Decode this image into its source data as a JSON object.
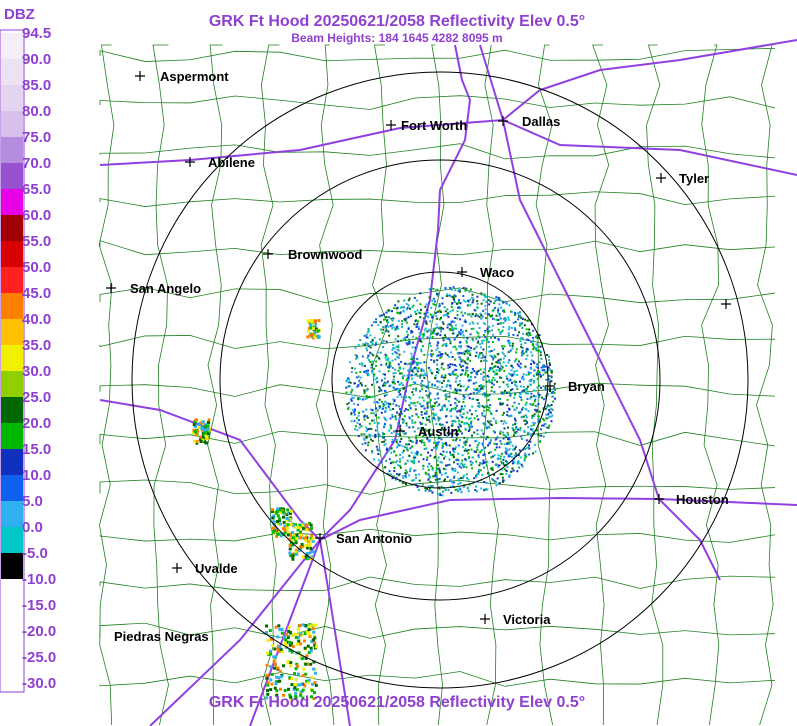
{
  "header": {
    "title": "GRK Ft Hood 20250621/2058 Reflectivity Elev 0.5°",
    "subtitle": "Beam Heights: 184 1645 4282 8095 m"
  },
  "legend": {
    "unit": "DBZ",
    "labels": [
      "94.5",
      "90.0",
      "85.0",
      "80.0",
      "75.0",
      "70.0",
      "65.0",
      "60.0",
      "55.0",
      "50.0",
      "45.0",
      "40.0",
      "35.0",
      "30.0",
      "25.0",
      "20.0",
      "15.0",
      "10.0",
      "5.0",
      "0.0",
      "-5.0",
      "-10.0",
      "-15.0",
      "-20.0",
      "-25.0",
      "-30.0"
    ],
    "band_colors": [
      "#f4eef8",
      "#ece2f4",
      "#e4d4f0",
      "#d8c0ec",
      "#b48ce0",
      "#9650d0",
      "#e800e8",
      "#a00000",
      "#d80000",
      "#ff2020",
      "#ff8000",
      "#ffc000",
      "#f0f000",
      "#90d000",
      "#006800",
      "#00b800",
      "#1030c0",
      "#1060f0",
      "#30b0f0",
      "#00c8c8",
      "#000000",
      "#ffffff",
      "#ffffff",
      "#ffffff",
      "#ffffff"
    ]
  },
  "cities": [
    "Aspermont",
    "Fort Worth",
    "Dallas",
    "Abilene",
    "Tyler",
    "Brownwood",
    "Waco",
    "San Angelo",
    "Bryan",
    "Austin",
    "Houston",
    "San Antonio",
    "Uvalde",
    "Victoria",
    "Piedras Negras"
  ]
}
